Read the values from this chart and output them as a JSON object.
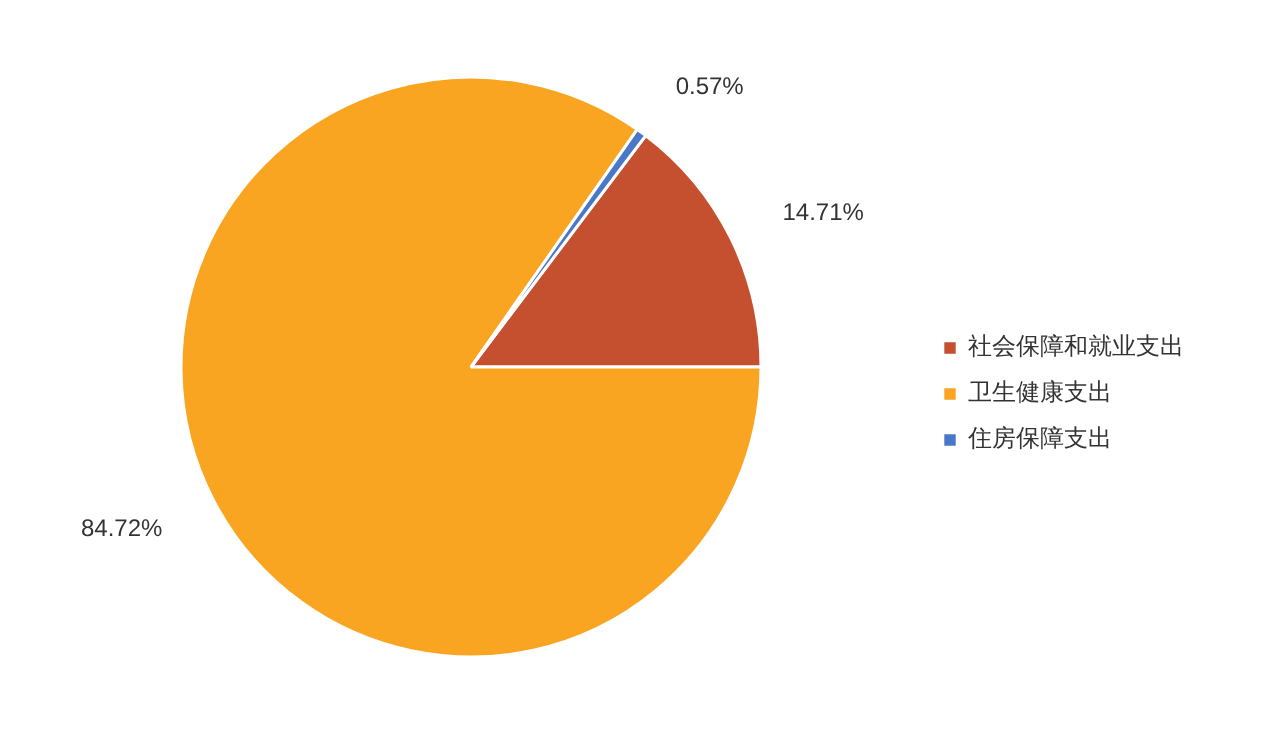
{
  "chart_data": {
    "type": "pie",
    "categories": [
      "社会保障和就业支出",
      "卫生健康支出",
      "住房保障支出"
    ],
    "values": [
      14.71,
      84.72,
      0.57
    ],
    "colors": [
      "#c4502f",
      "#f9a522",
      "#4a78c8"
    ],
    "value_labels": [
      "14.71%",
      "84.72%",
      "0.57%"
    ],
    "legend": "right"
  }
}
